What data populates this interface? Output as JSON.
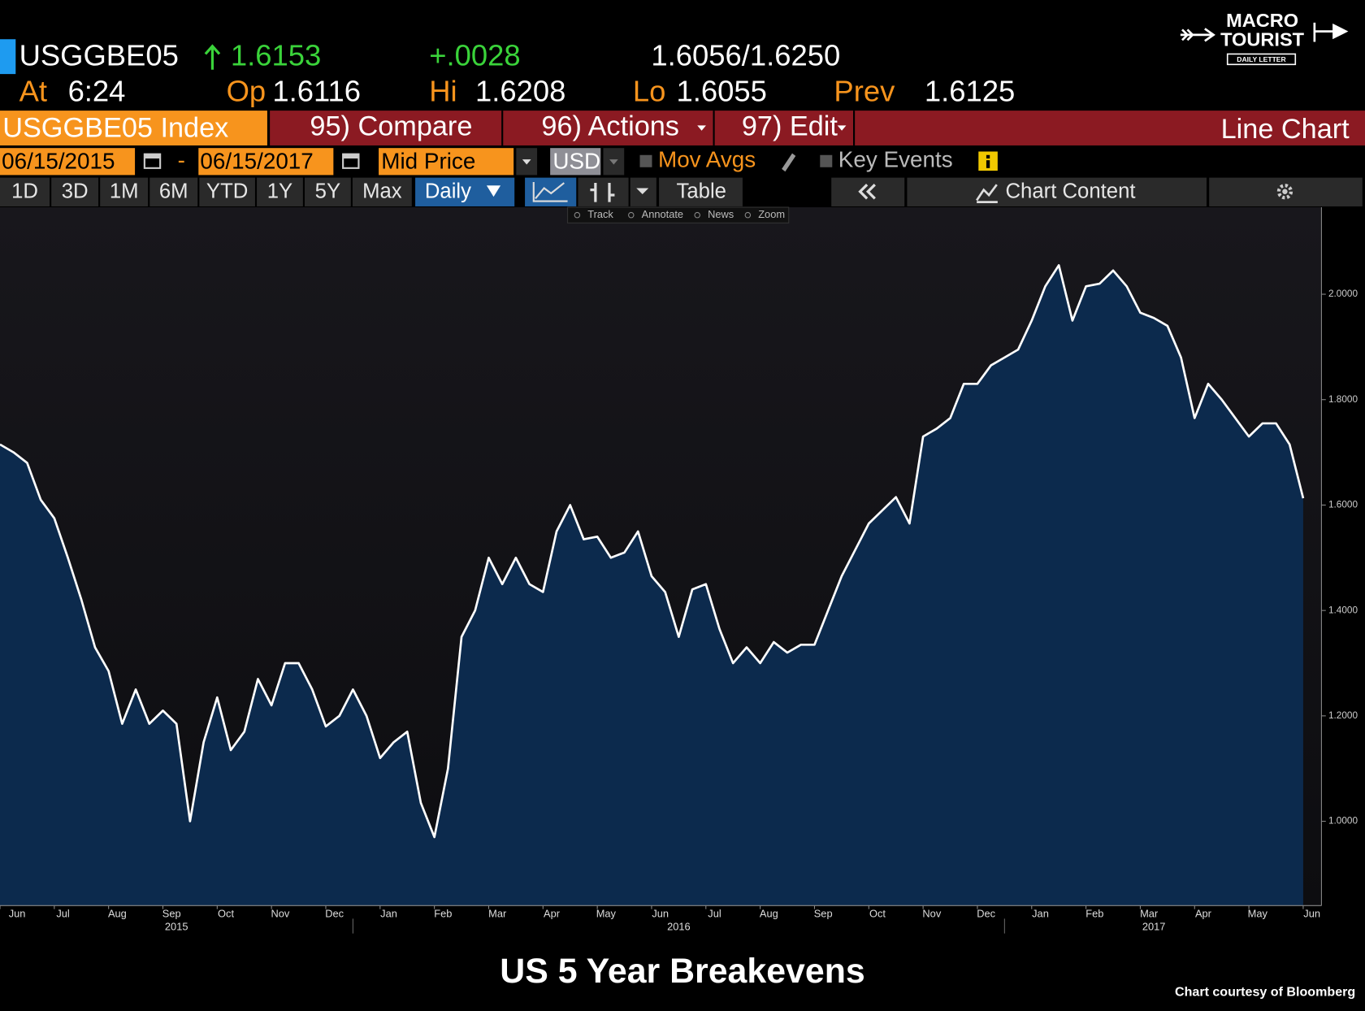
{
  "header": {
    "ticker": "USGGBE05",
    "last": "1.6153",
    "change": "+.0028",
    "bid_ask": "1.6056/1.6250",
    "time_label": "At",
    "time": "6:24",
    "open_label": "Op",
    "open": "1.6116",
    "high_label": "Hi",
    "high": "1.6208",
    "low_label": "Lo",
    "low": "1.6055",
    "prev_label": "Prev",
    "prev": "1.6125"
  },
  "logo": {
    "line1": "MACRO",
    "line2": "TOURIST",
    "line3": "DAILY LETTER"
  },
  "toolbar": {
    "security": "USGGBE05 Index",
    "compare": "95) Compare",
    "actions": "96) Actions",
    "edit": "97) Edit",
    "view": "Line Chart",
    "start_date": "06/15/2015",
    "date_sep": "-",
    "end_date": "06/15/2017",
    "price_field": "Mid Price",
    "currency": "USD",
    "mov_avgs": "Mov Avgs",
    "key_events": "Key Events",
    "periods": [
      "1D",
      "3D",
      "1M",
      "6M",
      "YTD",
      "1Y",
      "5Y",
      "Max"
    ],
    "frequency": "Daily",
    "table": "Table",
    "chart_content": "Chart Content",
    "tools": [
      "Track",
      "Annotate",
      "News",
      "Zoom"
    ]
  },
  "chart_data": {
    "type": "line",
    "title": "US 5 Year Breakevens",
    "source": "Chart courtesy of Bloomberg",
    "categories": [
      "Jun",
      null,
      null,
      null,
      "Jul",
      null,
      null,
      null,
      "Aug",
      null,
      null,
      null,
      "Sep",
      null,
      null,
      null,
      "Oct",
      null,
      null,
      null,
      "Nov",
      null,
      null,
      null,
      "Dec",
      null,
      null,
      null,
      "Jan",
      null,
      null,
      null,
      "Feb",
      null,
      null,
      null,
      "Mar",
      null,
      null,
      null,
      "Apr",
      null,
      null,
      null,
      "May",
      null,
      null,
      null,
      "Jun",
      null,
      null,
      null,
      "Jul",
      null,
      null,
      null,
      "Aug",
      null,
      null,
      null,
      "Sep",
      null,
      null,
      null,
      "Oct",
      null,
      null,
      null,
      "Nov",
      null,
      null,
      null,
      "Dec",
      null,
      null,
      null,
      "Jan",
      null,
      null,
      null,
      "Feb",
      null,
      null,
      null,
      "Mar",
      null,
      null,
      null,
      "Apr",
      null,
      null,
      null,
      "May",
      null,
      null,
      null,
      "Jun"
    ],
    "values": [
      1.715,
      1.7,
      1.68,
      1.61,
      1.575,
      1.5,
      1.42,
      1.33,
      1.285,
      1.185,
      1.25,
      1.185,
      1.21,
      1.185,
      1.0,
      1.15,
      1.235,
      1.135,
      1.17,
      1.27,
      1.22,
      1.3,
      1.3,
      1.25,
      1.18,
      1.2,
      1.25,
      1.2,
      1.12,
      1.15,
      1.17,
      1.035,
      0.97,
      1.1,
      1.35,
      1.4,
      1.5,
      1.45,
      1.5,
      1.45,
      1.435,
      1.55,
      1.6,
      1.535,
      1.54,
      1.5,
      1.51,
      1.55,
      1.465,
      1.435,
      1.35,
      1.44,
      1.45,
      1.365,
      1.3,
      1.33,
      1.3,
      1.34,
      1.32,
      1.335,
      1.335,
      1.4,
      1.465,
      1.515,
      1.565,
      1.59,
      1.615,
      1.565,
      1.73,
      1.745,
      1.765,
      1.83,
      1.83,
      1.865,
      1.88,
      1.895,
      1.95,
      2.015,
      2.055,
      1.95,
      2.015,
      2.02,
      2.045,
      2.015,
      1.965,
      1.955,
      1.94,
      1.88,
      1.765,
      1.83,
      1.8,
      1.765,
      1.73,
      1.755,
      1.755,
      1.715,
      1.613
    ],
    "years": [
      "2015",
      "2016",
      "2017"
    ],
    "color": "#ffffff",
    "fill": "#0c2a4d",
    "ylim": [
      0.84,
      2.165
    ],
    "yticks": [
      {
        "value": 1,
        "label": "1.0000"
      },
      {
        "value": 1.2,
        "label": "1.2000"
      },
      {
        "value": 1.4,
        "label": "1.4000"
      },
      {
        "value": 1.6,
        "label": "1.6000"
      },
      {
        "value": 1.8,
        "label": "1.8000"
      },
      {
        "value": 2,
        "label": "2.0000"
      }
    ]
  }
}
